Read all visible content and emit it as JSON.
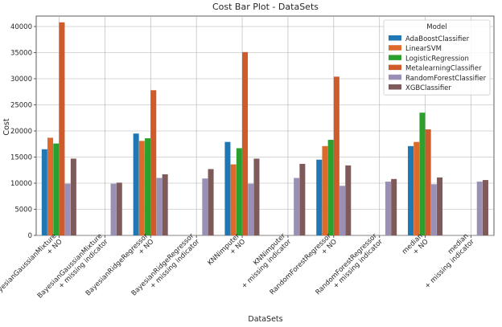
{
  "chart_data": {
    "type": "bar",
    "title": "Cost Bar Plot - DataSets",
    "xlabel": "DataSets",
    "ylabel": "Cost",
    "ylim": [
      0,
      42000
    ],
    "yticks": [
      0,
      5000,
      10000,
      15000,
      20000,
      25000,
      30000,
      35000,
      40000
    ],
    "grid": true,
    "legend": {
      "title": "Model",
      "placement": "top-right"
    },
    "categories": [
      [
        "BayesianGaussianMixture",
        "+ NO"
      ],
      [
        "BayesianGaussianMixture",
        "+ missing indicator"
      ],
      [
        "BayesianRidgeRegressor",
        "+ NO"
      ],
      [
        "BayesianRidgeRegressor",
        "+ missing indicator"
      ],
      [
        "KNNimputer",
        "+ NO"
      ],
      [
        "KNNimputer",
        "+ missing indicator"
      ],
      [
        "RandomForestRegressor",
        "+ NO"
      ],
      [
        "RandomForestRegressor",
        "+ missing indicator"
      ],
      [
        "median",
        "+ NO"
      ],
      [
        "median",
        "+ missing indicator"
      ]
    ],
    "series": [
      {
        "name": "AdaBoostClassifier",
        "color": "#1f77b4",
        "values": [
          16500,
          null,
          19500,
          null,
          17900,
          null,
          14500,
          null,
          17100,
          null
        ]
      },
      {
        "name": "LinearSVM",
        "color": "#dd6a2a",
        "values": [
          18700,
          null,
          18100,
          null,
          13600,
          null,
          17100,
          null,
          17900,
          null
        ]
      },
      {
        "name": "LogisticRegression",
        "color": "#2ca02c",
        "values": [
          17600,
          null,
          18600,
          null,
          16700,
          null,
          18300,
          null,
          23500,
          null
        ]
      },
      {
        "name": "MetalearningClassifier",
        "color": "#cf5a2a",
        "values": [
          40800,
          null,
          27800,
          null,
          35100,
          null,
          30400,
          null,
          20300,
          null
        ]
      },
      {
        "name": "RandomForestClassifier",
        "color": "#9a8fb5",
        "values": [
          9900,
          9900,
          11000,
          10900,
          9900,
          11000,
          9500,
          10300,
          9800,
          10300
        ]
      },
      {
        "name": "XGBClassifier",
        "color": "#7f5a5a",
        "values": [
          14700,
          10100,
          11700,
          12700,
          14700,
          13700,
          13400,
          10800,
          11100,
          10600
        ]
      }
    ]
  }
}
